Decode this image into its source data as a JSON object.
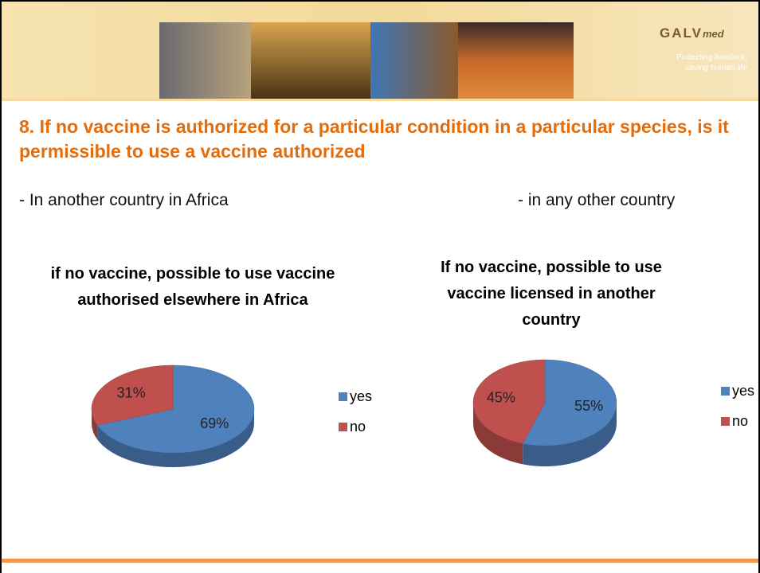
{
  "header": {
    "logo_main": "GALV",
    "logo_sub": "med",
    "tagline_1": "Protecting livestock,",
    "tagline_2": "saving human life"
  },
  "heading": "8. If no vaccine is authorized for a particular condition in a particular species, is it permissible to use a vaccine authorized",
  "subheadings": [
    "- In another country in Africa",
    "- in any other country"
  ],
  "chart_data": [
    {
      "type": "pie",
      "title": "if no vaccine, possible to use vaccine authorised elsewhere in Africa",
      "categories": [
        "yes",
        "no"
      ],
      "values": [
        69,
        31
      ],
      "value_labels": [
        "69%",
        "31%"
      ],
      "colors": [
        "#4F81BD",
        "#C0504D"
      ]
    },
    {
      "type": "pie",
      "title": "If no vaccine, possible to use vaccine licensed in another country",
      "categories": [
        "yes",
        "no"
      ],
      "values": [
        55,
        45
      ],
      "value_labels": [
        "55%",
        "45%"
      ],
      "colors": [
        "#4F81BD",
        "#C0504D"
      ]
    }
  ]
}
